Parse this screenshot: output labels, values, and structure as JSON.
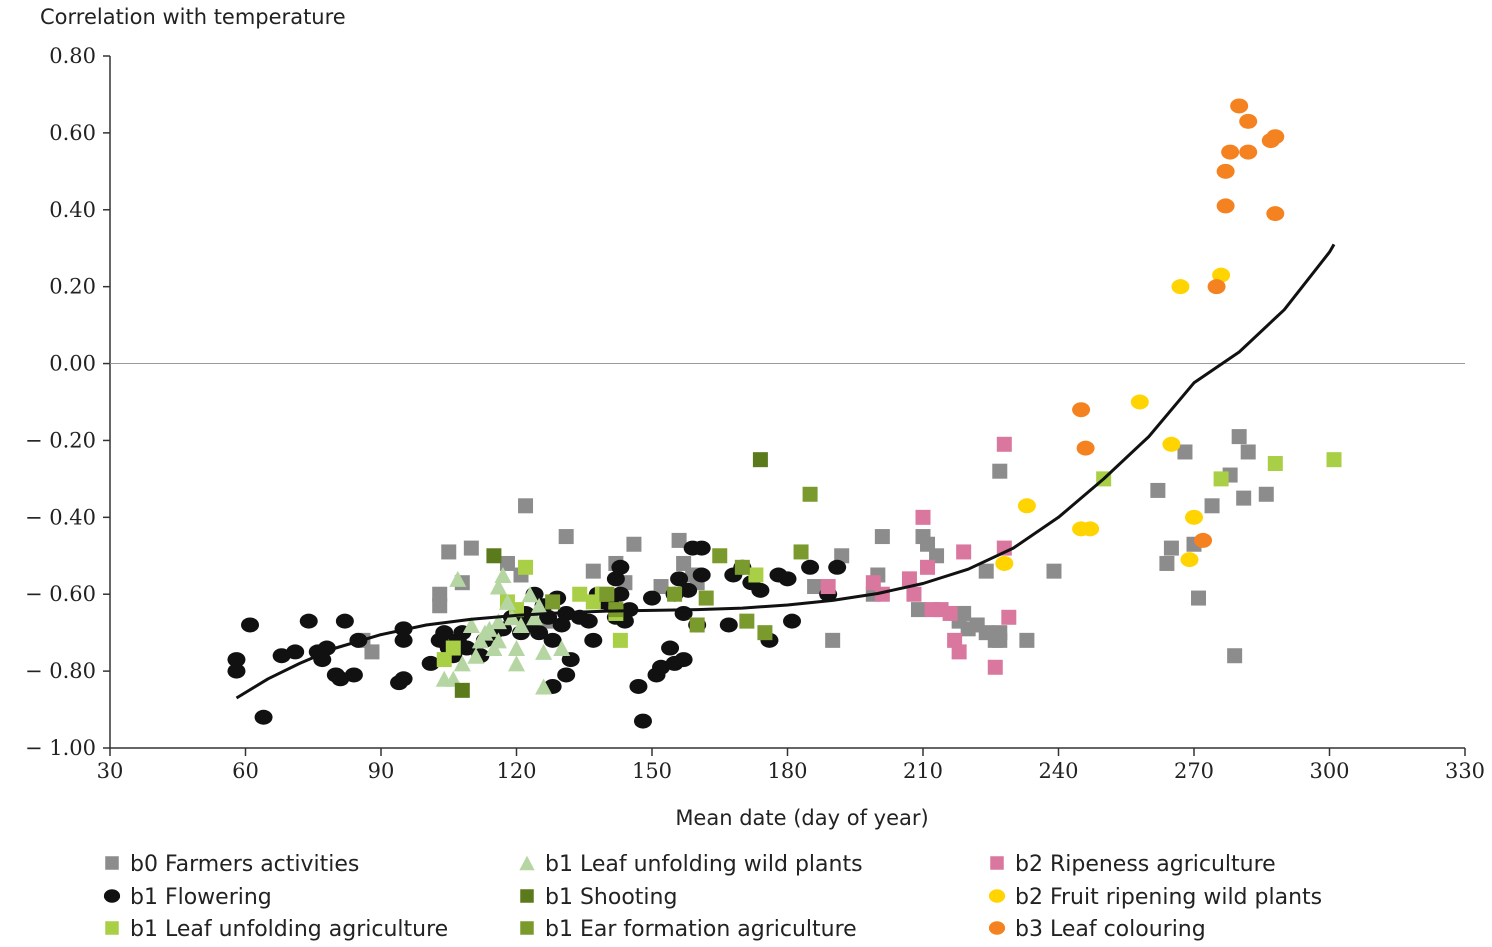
{
  "chart_data": {
    "type": "scatter",
    "title": "",
    "ylabel": "Correlation with temperature",
    "xlabel": "Mean date (day of year)",
    "xlim": [
      30,
      330
    ],
    "ylim": [
      -1.0,
      0.8
    ],
    "x_ticks": [
      30,
      60,
      90,
      120,
      150,
      180,
      210,
      240,
      270,
      300,
      330
    ],
    "x_tick_labels": [
      "30",
      "60",
      "90",
      "120",
      "150",
      "180",
      "210",
      "240",
      "270",
      "300",
      "330"
    ],
    "y_ticks": [
      0.8,
      0.6,
      0.4,
      0.2,
      0.0,
      -0.2,
      -0.4,
      -0.6,
      -0.8,
      -1.0
    ],
    "y_tick_labels": [
      "0.80",
      "0.60",
      "0.40",
      "0.20",
      "0.00",
      "− 0.20",
      "− 0.40",
      "− 0.60",
      "− 0.80",
      "− 1.00"
    ],
    "reference_line_y": 0.0,
    "grid": false,
    "legend_position": "bottom",
    "series": [
      {
        "name": "b0 Farmers activities",
        "marker": "square",
        "color": "#8c8c8c",
        "points": [
          [
            86,
            -0.72
          ],
          [
            88,
            -0.75
          ],
          [
            103,
            -0.6
          ],
          [
            103,
            -0.63
          ],
          [
            105,
            -0.49
          ],
          [
            108,
            -0.57
          ],
          [
            110,
            -0.48
          ],
          [
            118,
            -0.52
          ],
          [
            121,
            -0.55
          ],
          [
            122,
            -0.37
          ],
          [
            127,
            -0.67
          ],
          [
            131,
            -0.45
          ],
          [
            137,
            -0.54
          ],
          [
            142,
            -0.52
          ],
          [
            144,
            -0.57
          ],
          [
            146,
            -0.47
          ],
          [
            152,
            -0.58
          ],
          [
            156,
            -0.46
          ],
          [
            157,
            -0.52
          ],
          [
            159,
            -0.55
          ],
          [
            160,
            -0.57
          ],
          [
            186,
            -0.58
          ],
          [
            190,
            -0.72
          ],
          [
            192,
            -0.5
          ],
          [
            199,
            -0.6
          ],
          [
            200,
            -0.55
          ],
          [
            201,
            -0.45
          ],
          [
            209,
            -0.64
          ],
          [
            210,
            -0.45
          ],
          [
            211,
            -0.47
          ],
          [
            213,
            -0.5
          ],
          [
            218,
            -0.67
          ],
          [
            219,
            -0.65
          ],
          [
            220,
            -0.69
          ],
          [
            222,
            -0.68
          ],
          [
            224,
            -0.7
          ],
          [
            226,
            -0.72
          ],
          [
            227,
            -0.72
          ],
          [
            227,
            -0.7
          ],
          [
            227,
            -0.28
          ],
          [
            224,
            -0.54
          ],
          [
            233,
            -0.72
          ],
          [
            239,
            -0.54
          ],
          [
            262,
            -0.33
          ],
          [
            264,
            -0.52
          ],
          [
            265,
            -0.48
          ],
          [
            268,
            -0.23
          ],
          [
            270,
            -0.47
          ],
          [
            271,
            -0.61
          ],
          [
            274,
            -0.37
          ],
          [
            278,
            -0.29
          ],
          [
            279,
            -0.76
          ],
          [
            280,
            -0.19
          ],
          [
            281,
            -0.35
          ],
          [
            282,
            -0.23
          ],
          [
            286,
            -0.34
          ]
        ]
      },
      {
        "name": "b1 Flowering",
        "marker": "ellipse",
        "color": "#111111",
        "points": [
          [
            58,
            -0.77
          ],
          [
            58,
            -0.8
          ],
          [
            61,
            -0.68
          ],
          [
            64,
            -0.92
          ],
          [
            68,
            -0.76
          ],
          [
            71,
            -0.75
          ],
          [
            74,
            -0.67
          ],
          [
            76,
            -0.75
          ],
          [
            77,
            -0.77
          ],
          [
            78,
            -0.74
          ],
          [
            80,
            -0.81
          ],
          [
            81,
            -0.82
          ],
          [
            82,
            -0.67
          ],
          [
            84,
            -0.81
          ],
          [
            85,
            -0.72
          ],
          [
            94,
            -0.83
          ],
          [
            95,
            -0.82
          ],
          [
            95,
            -0.69
          ],
          [
            95,
            -0.72
          ],
          [
            101,
            -0.78
          ],
          [
            103,
            -0.72
          ],
          [
            104,
            -0.7
          ],
          [
            105,
            -0.74
          ],
          [
            106,
            -0.76
          ],
          [
            107,
            -0.72
          ],
          [
            108,
            -0.7
          ],
          [
            109,
            -0.74
          ],
          [
            112,
            -0.76
          ],
          [
            113,
            -0.72
          ],
          [
            115,
            -0.7
          ],
          [
            117,
            -0.69
          ],
          [
            119,
            -0.66
          ],
          [
            121,
            -0.7
          ],
          [
            122,
            -0.65
          ],
          [
            123,
            -0.68
          ],
          [
            124,
            -0.6
          ],
          [
            125,
            -0.7
          ],
          [
            126,
            -0.63
          ],
          [
            127,
            -0.66
          ],
          [
            128,
            -0.72
          ],
          [
            128,
            -0.84
          ],
          [
            129,
            -0.61
          ],
          [
            130,
            -0.68
          ],
          [
            131,
            -0.65
          ],
          [
            131,
            -0.81
          ],
          [
            132,
            -0.77
          ],
          [
            134,
            -0.66
          ],
          [
            136,
            -0.67
          ],
          [
            137,
            -0.72
          ],
          [
            138,
            -0.6
          ],
          [
            139,
            -0.62
          ],
          [
            141,
            -0.63
          ],
          [
            142,
            -0.66
          ],
          [
            142,
            -0.56
          ],
          [
            143,
            -0.53
          ],
          [
            143,
            -0.6
          ],
          [
            144,
            -0.67
          ],
          [
            145,
            -0.64
          ],
          [
            147,
            -0.84
          ],
          [
            148,
            -0.93
          ],
          [
            150,
            -0.61
          ],
          [
            151,
            -0.81
          ],
          [
            152,
            -0.79
          ],
          [
            154,
            -0.74
          ],
          [
            155,
            -0.78
          ],
          [
            155,
            -0.6
          ],
          [
            156,
            -0.56
          ],
          [
            157,
            -0.65
          ],
          [
            157,
            -0.77
          ],
          [
            158,
            -0.59
          ],
          [
            159,
            -0.48
          ],
          [
            160,
            -0.68
          ],
          [
            161,
            -0.55
          ],
          [
            161,
            -0.48
          ],
          [
            167,
            -0.68
          ],
          [
            168,
            -0.55
          ],
          [
            170,
            -0.53
          ],
          [
            172,
            -0.57
          ],
          [
            174,
            -0.59
          ],
          [
            176,
            -0.72
          ],
          [
            178,
            -0.55
          ],
          [
            180,
            -0.56
          ],
          [
            181,
            -0.67
          ],
          [
            185,
            -0.53
          ],
          [
            189,
            -0.6
          ],
          [
            191,
            -0.53
          ]
        ]
      },
      {
        "name": "b1 Leaf unfolding agriculture",
        "marker": "square",
        "color": "#a8cf45",
        "points": [
          [
            104,
            -0.77
          ],
          [
            106,
            -0.74
          ],
          [
            118,
            -0.62
          ],
          [
            120,
            -0.64
          ],
          [
            122,
            -0.53
          ],
          [
            134,
            -0.6
          ],
          [
            137,
            -0.62
          ],
          [
            139,
            -0.6
          ],
          [
            142,
            -0.65
          ],
          [
            143,
            -0.72
          ],
          [
            173,
            -0.55
          ],
          [
            250,
            -0.3
          ],
          [
            276,
            -0.3
          ],
          [
            288,
            -0.26
          ],
          [
            301,
            -0.25
          ]
        ]
      },
      {
        "name": "b1 Leaf unfolding wild plants",
        "marker": "triangle",
        "color": "#b5d6a2",
        "points": [
          [
            104,
            -0.82
          ],
          [
            106,
            -0.82
          ],
          [
            107,
            -0.56
          ],
          [
            108,
            -0.78
          ],
          [
            110,
            -0.68
          ],
          [
            111,
            -0.76
          ],
          [
            112,
            -0.72
          ],
          [
            113,
            -0.7
          ],
          [
            114,
            -0.69
          ],
          [
            115,
            -0.74
          ],
          [
            116,
            -0.72
          ],
          [
            116,
            -0.67
          ],
          [
            116,
            -0.58
          ],
          [
            117,
            -0.55
          ],
          [
            118,
            -0.62
          ],
          [
            119,
            -0.66
          ],
          [
            120,
            -0.74
          ],
          [
            120,
            -0.78
          ],
          [
            121,
            -0.68
          ],
          [
            123,
            -0.6
          ],
          [
            124,
            -0.66
          ],
          [
            125,
            -0.63
          ],
          [
            126,
            -0.75
          ],
          [
            126,
            -0.84
          ],
          [
            130,
            -0.74
          ]
        ]
      },
      {
        "name": "b1 Shooting",
        "marker": "square",
        "color": "#5b7a1c",
        "points": [
          [
            108,
            -0.85
          ],
          [
            115,
            -0.5
          ],
          [
            174,
            -0.25
          ]
        ]
      },
      {
        "name": "b1 Ear formation agriculture",
        "marker": "square",
        "color": "#7a9a2e",
        "points": [
          [
            128,
            -0.62
          ],
          [
            140,
            -0.6
          ],
          [
            142,
            -0.64
          ],
          [
            155,
            -0.6
          ],
          [
            160,
            -0.68
          ],
          [
            162,
            -0.61
          ],
          [
            165,
            -0.5
          ],
          [
            170,
            -0.53
          ],
          [
            171,
            -0.67
          ],
          [
            175,
            -0.7
          ],
          [
            183,
            -0.49
          ],
          [
            185,
            -0.34
          ]
        ]
      },
      {
        "name": "b2 Ripeness agriculture",
        "marker": "square",
        "color": "#d9779e",
        "points": [
          [
            189,
            -0.58
          ],
          [
            199,
            -0.57
          ],
          [
            201,
            -0.6
          ],
          [
            207,
            -0.56
          ],
          [
            208,
            -0.6
          ],
          [
            210,
            -0.4
          ],
          [
            211,
            -0.53
          ],
          [
            212,
            -0.64
          ],
          [
            214,
            -0.64
          ],
          [
            216,
            -0.65
          ],
          [
            217,
            -0.72
          ],
          [
            218,
            -0.75
          ],
          [
            219,
            -0.49
          ],
          [
            226,
            -0.79
          ],
          [
            228,
            -0.48
          ],
          [
            228,
            -0.21
          ],
          [
            229,
            -0.66
          ]
        ]
      },
      {
        "name": "b2 Fruit ripening wild plants",
        "marker": "ellipse",
        "color": "#ffd400",
        "points": [
          [
            228,
            -0.52
          ],
          [
            233,
            -0.37
          ],
          [
            245,
            -0.43
          ],
          [
            247,
            -0.43
          ],
          [
            258,
            -0.1
          ],
          [
            265,
            -0.21
          ],
          [
            267,
            0.2
          ],
          [
            269,
            -0.51
          ],
          [
            270,
            -0.4
          ],
          [
            276,
            0.23
          ]
        ]
      },
      {
        "name": "b3 Leaf colouring",
        "marker": "ellipse",
        "color": "#f58220",
        "points": [
          [
            245,
            -0.12
          ],
          [
            246,
            -0.22
          ],
          [
            272,
            -0.46
          ],
          [
            275,
            0.2
          ],
          [
            277,
            0.5
          ],
          [
            277,
            0.41
          ],
          [
            278,
            0.55
          ],
          [
            280,
            0.67
          ],
          [
            282,
            0.63
          ],
          [
            282,
            0.55
          ],
          [
            287,
            0.58
          ],
          [
            288,
            0.59
          ],
          [
            288,
            0.39
          ]
        ]
      }
    ],
    "trendline": {
      "type": "polynomial",
      "color": "#111111",
      "x": [
        58,
        65,
        72,
        80,
        90,
        100,
        110,
        120,
        130,
        140,
        150,
        160,
        170,
        180,
        190,
        200,
        210,
        220,
        230,
        240,
        250,
        260,
        270,
        280,
        290,
        300,
        301
      ],
      "y": [
        -0.87,
        -0.82,
        -0.78,
        -0.74,
        -0.705,
        -0.68,
        -0.665,
        -0.655,
        -0.648,
        -0.644,
        -0.642,
        -0.64,
        -0.636,
        -0.628,
        -0.616,
        -0.598,
        -0.572,
        -0.535,
        -0.48,
        -0.4,
        -0.3,
        -0.19,
        -0.05,
        0.03,
        0.14,
        0.29,
        0.31
      ]
    }
  }
}
